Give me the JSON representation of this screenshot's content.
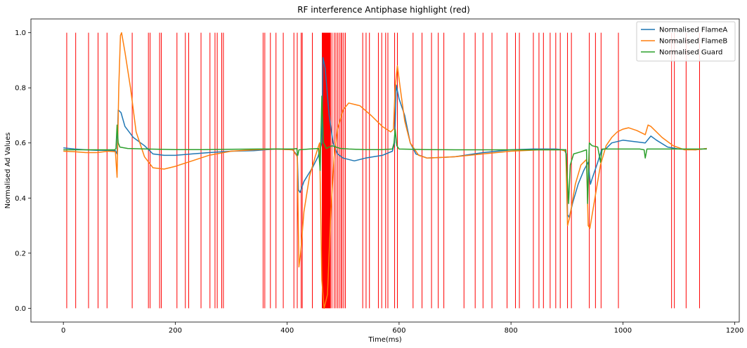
{
  "chart_data": {
    "type": "line",
    "title": "RF interference Antiphase highlight (red)",
    "xlabel": "Time(ms)",
    "ylabel": "Normalised Ad Values",
    "xlim": [
      -58,
      1208
    ],
    "ylim": [
      -0.05,
      1.05
    ],
    "xticks": [
      0,
      200,
      400,
      600,
      800,
      1000,
      1200
    ],
    "yticks": [
      0.0,
      0.2,
      0.4,
      0.6,
      0.8,
      1.0
    ],
    "grid": false,
    "legend_position": "top-right",
    "highlight": {
      "color": "#ff0000",
      "ymin": 0,
      "ymax": 1,
      "lines": [
        6,
        22,
        45,
        62,
        78,
        123,
        152,
        155,
        172,
        175,
        203,
        218,
        224,
        246,
        262,
        271,
        275,
        283,
        286,
        357,
        360,
        370,
        380,
        393,
        412,
        418,
        425,
        427,
        445,
        480,
        484,
        487,
        490,
        493,
        496,
        498,
        501,
        504,
        535,
        541,
        547,
        563,
        569,
        576,
        580,
        592,
        597,
        625,
        641,
        658,
        670,
        680,
        716,
        736,
        750,
        766,
        793,
        808,
        815,
        840,
        850,
        858,
        870,
        880,
        888,
        901,
        908,
        940,
        951,
        961,
        992,
        1087,
        1092,
        1113,
        1137
      ],
      "bands": [
        [
          462,
          478
        ]
      ]
    },
    "series": [
      {
        "name": "Normalised FlameA",
        "color": "#1f77b4",
        "points": [
          [
            0,
            0.582
          ],
          [
            20,
            0.578
          ],
          [
            40,
            0.575
          ],
          [
            60,
            0.573
          ],
          [
            80,
            0.573
          ],
          [
            93,
            0.572
          ],
          [
            96,
            0.56
          ],
          [
            98,
            0.72
          ],
          [
            103,
            0.71
          ],
          [
            110,
            0.66
          ],
          [
            125,
            0.62
          ],
          [
            145,
            0.59
          ],
          [
            160,
            0.56
          ],
          [
            180,
            0.555
          ],
          [
            200,
            0.555
          ],
          [
            230,
            0.56
          ],
          [
            260,
            0.565
          ],
          [
            300,
            0.57
          ],
          [
            340,
            0.572
          ],
          [
            380,
            0.578
          ],
          [
            410,
            0.575
          ],
          [
            418,
            0.555
          ],
          [
            420,
            0.43
          ],
          [
            423,
            0.42
          ],
          [
            430,
            0.46
          ],
          [
            445,
            0.51
          ],
          [
            455,
            0.55
          ],
          [
            462,
            0.6
          ],
          [
            464,
            0.91
          ],
          [
            468,
            0.87
          ],
          [
            475,
            0.7
          ],
          [
            482,
            0.6
          ],
          [
            490,
            0.56
          ],
          [
            500,
            0.545
          ],
          [
            520,
            0.535
          ],
          [
            540,
            0.545
          ],
          [
            570,
            0.555
          ],
          [
            588,
            0.57
          ],
          [
            592,
            0.6
          ],
          [
            595,
            0.81
          ],
          [
            600,
            0.76
          ],
          [
            610,
            0.7
          ],
          [
            620,
            0.6
          ],
          [
            630,
            0.56
          ],
          [
            650,
            0.545
          ],
          [
            700,
            0.55
          ],
          [
            750,
            0.565
          ],
          [
            800,
            0.575
          ],
          [
            840,
            0.578
          ],
          [
            880,
            0.578
          ],
          [
            895,
            0.575
          ],
          [
            899,
            0.56
          ],
          [
            901,
            0.34
          ],
          [
            904,
            0.33
          ],
          [
            910,
            0.38
          ],
          [
            920,
            0.45
          ],
          [
            930,
            0.5
          ],
          [
            938,
            0.53
          ],
          [
            942,
            0.45
          ],
          [
            945,
            0.47
          ],
          [
            955,
            0.53
          ],
          [
            962,
            0.575
          ],
          [
            970,
            0.58
          ],
          [
            980,
            0.6
          ],
          [
            1000,
            0.61
          ],
          [
            1020,
            0.605
          ],
          [
            1040,
            0.6
          ],
          [
            1050,
            0.625
          ],
          [
            1060,
            0.61
          ],
          [
            1080,
            0.585
          ],
          [
            1100,
            0.578
          ],
          [
            1130,
            0.575
          ],
          [
            1150,
            0.58
          ]
        ]
      },
      {
        "name": "Normalised FlameB",
        "color": "#ff7f0e",
        "points": [
          [
            0,
            0.57
          ],
          [
            20,
            0.568
          ],
          [
            40,
            0.565
          ],
          [
            60,
            0.565
          ],
          [
            80,
            0.57
          ],
          [
            93,
            0.568
          ],
          [
            96,
            0.475
          ],
          [
            99,
            0.8
          ],
          [
            102,
            0.99
          ],
          [
            104,
            1.0
          ],
          [
            110,
            0.93
          ],
          [
            120,
            0.8
          ],
          [
            130,
            0.64
          ],
          [
            145,
            0.55
          ],
          [
            160,
            0.51
          ],
          [
            180,
            0.505
          ],
          [
            200,
            0.515
          ],
          [
            230,
            0.535
          ],
          [
            260,
            0.555
          ],
          [
            300,
            0.57
          ],
          [
            340,
            0.575
          ],
          [
            380,
            0.578
          ],
          [
            410,
            0.575
          ],
          [
            418,
            0.55
          ],
          [
            421,
            0.15
          ],
          [
            424,
            0.2
          ],
          [
            430,
            0.35
          ],
          [
            440,
            0.48
          ],
          [
            450,
            0.55
          ],
          [
            458,
            0.6
          ],
          [
            462,
            0.1
          ],
          [
            466,
            0.0
          ],
          [
            472,
            0.05
          ],
          [
            478,
            0.35
          ],
          [
            484,
            0.55
          ],
          [
            490,
            0.65
          ],
          [
            500,
            0.72
          ],
          [
            510,
            0.745
          ],
          [
            530,
            0.735
          ],
          [
            550,
            0.7
          ],
          [
            570,
            0.66
          ],
          [
            585,
            0.64
          ],
          [
            590,
            0.65
          ],
          [
            593,
            0.8
          ],
          [
            597,
            0.88
          ],
          [
            602,
            0.8
          ],
          [
            610,
            0.68
          ],
          [
            620,
            0.6
          ],
          [
            635,
            0.555
          ],
          [
            650,
            0.545
          ],
          [
            700,
            0.55
          ],
          [
            750,
            0.56
          ],
          [
            800,
            0.57
          ],
          [
            850,
            0.575
          ],
          [
            890,
            0.575
          ],
          [
            898,
            0.57
          ],
          [
            901,
            0.3
          ],
          [
            905,
            0.33
          ],
          [
            915,
            0.45
          ],
          [
            925,
            0.52
          ],
          [
            935,
            0.54
          ],
          [
            938,
            0.3
          ],
          [
            941,
            0.29
          ],
          [
            950,
            0.4
          ],
          [
            960,
            0.52
          ],
          [
            970,
            0.59
          ],
          [
            980,
            0.62
          ],
          [
            990,
            0.64
          ],
          [
            1000,
            0.65
          ],
          [
            1010,
            0.655
          ],
          [
            1025,
            0.645
          ],
          [
            1040,
            0.63
          ],
          [
            1045,
            0.665
          ],
          [
            1050,
            0.66
          ],
          [
            1070,
            0.62
          ],
          [
            1090,
            0.59
          ],
          [
            1110,
            0.575
          ],
          [
            1130,
            0.575
          ],
          [
            1150,
            0.58
          ]
        ]
      },
      {
        "name": "Normalised Guard",
        "color": "#2ca02c",
        "points": [
          [
            0,
            0.575
          ],
          [
            20,
            0.575
          ],
          [
            40,
            0.575
          ],
          [
            60,
            0.575
          ],
          [
            80,
            0.575
          ],
          [
            92,
            0.575
          ],
          [
            94,
            0.58
          ],
          [
            96,
            0.665
          ],
          [
            98,
            0.6
          ],
          [
            101,
            0.585
          ],
          [
            115,
            0.58
          ],
          [
            150,
            0.578
          ],
          [
            200,
            0.576
          ],
          [
            250,
            0.576
          ],
          [
            300,
            0.577
          ],
          [
            350,
            0.578
          ],
          [
            400,
            0.578
          ],
          [
            412,
            0.578
          ],
          [
            417,
            0.58
          ],
          [
            419,
            0.555
          ],
          [
            421,
            0.575
          ],
          [
            440,
            0.578
          ],
          [
            456,
            0.58
          ],
          [
            459,
            0.5
          ],
          [
            462,
            0.77
          ],
          [
            465,
            0.6
          ],
          [
            470,
            0.58
          ],
          [
            480,
            0.59
          ],
          [
            495,
            0.58
          ],
          [
            510,
            0.578
          ],
          [
            540,
            0.576
          ],
          [
            570,
            0.576
          ],
          [
            588,
            0.578
          ],
          [
            591,
            0.6
          ],
          [
            593,
            0.65
          ],
          [
            596,
            0.59
          ],
          [
            600,
            0.578
          ],
          [
            650,
            0.576
          ],
          [
            700,
            0.575
          ],
          [
            750,
            0.575
          ],
          [
            800,
            0.575
          ],
          [
            850,
            0.575
          ],
          [
            895,
            0.575
          ],
          [
            898,
            0.576
          ],
          [
            900,
            0.5
          ],
          [
            903,
            0.38
          ],
          [
            906,
            0.52
          ],
          [
            912,
            0.56
          ],
          [
            925,
            0.568
          ],
          [
            935,
            0.575
          ],
          [
            937,
            0.38
          ],
          [
            940,
            0.6
          ],
          [
            945,
            0.59
          ],
          [
            955,
            0.585
          ],
          [
            960,
            0.53
          ],
          [
            963,
            0.578
          ],
          [
            980,
            0.578
          ],
          [
            1000,
            0.578
          ],
          [
            1030,
            0.578
          ],
          [
            1038,
            0.575
          ],
          [
            1040,
            0.545
          ],
          [
            1043,
            0.578
          ],
          [
            1060,
            0.578
          ],
          [
            1100,
            0.578
          ],
          [
            1150,
            0.578
          ]
        ]
      }
    ]
  }
}
